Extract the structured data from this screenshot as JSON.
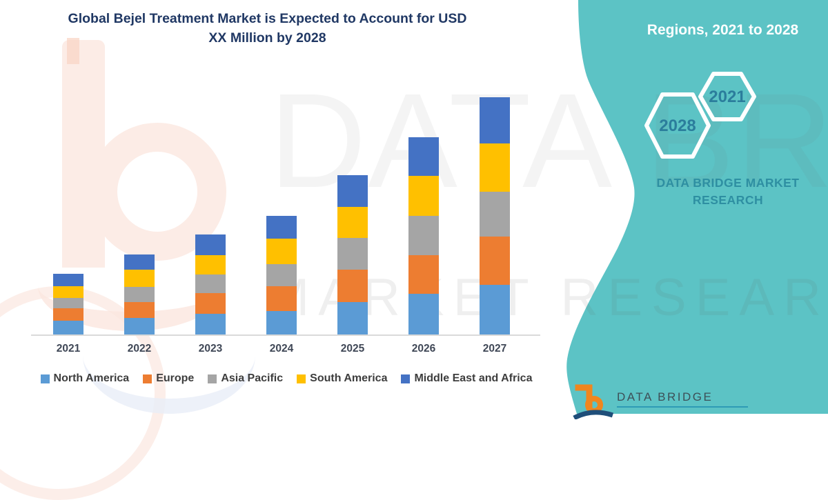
{
  "title": {
    "line1": "Global Bejel Treatment Market is Expected to Account for USD",
    "line2": "XX Million by 2028"
  },
  "side_panel": {
    "heading": "Regions, 2021 to 2028",
    "hexagons": [
      {
        "label": "2021"
      },
      {
        "label": "2028"
      }
    ],
    "brand_line1": "DATA BRIDGE MARKET",
    "brand_line2": "RESEARCH",
    "colors": {
      "background": "#5CC3C5",
      "heading_text": "#FFFFFF",
      "hexagon_year_text": "#2B7D9C",
      "brand_text": "#2E8FA2"
    }
  },
  "watermark": {
    "line1": "DATA BRIDGE",
    "line2": "MARKET RESEARCH"
  },
  "footer_logo": {
    "text": "DATA BRIDGE",
    "mark_color": "#F0861E",
    "text_color": "#3D4F57",
    "underline_color": "#2E9BB5"
  },
  "chart_data": {
    "type": "bar",
    "stacked": true,
    "grid": false,
    "legend_position": "bottom",
    "categories": [
      "2021",
      "2022",
      "2023",
      "2024",
      "2025",
      "2026",
      "2027"
    ],
    "series": [
      {
        "name": "North America",
        "color": "#5B9BD5",
        "values": [
          20,
          24,
          30,
          34,
          47,
          59,
          72
        ]
      },
      {
        "name": "Europe",
        "color": "#ED7D31",
        "values": [
          18,
          23,
          30,
          36,
          47,
          56,
          70
        ]
      },
      {
        "name": "Asia Pacific",
        "color": "#A5A5A5",
        "values": [
          15,
          22,
          27,
          32,
          46,
          57,
          65
        ]
      },
      {
        "name": "South America",
        "color": "#FFC000",
        "values": [
          17,
          25,
          28,
          37,
          45,
          58,
          70
        ]
      },
      {
        "name": "Middle East and Africa",
        "color": "#4472C4",
        "values": [
          18,
          22,
          30,
          33,
          46,
          56,
          67
        ]
      }
    ],
    "title": "Global Bejel Treatment Market is Expected to Account for USD XX Million by 2028",
    "xlabel": "",
    "ylabel": "",
    "value_axis_labels_shown": false,
    "units": "relative (USD XX Million placeholder, no numeric axis shown)"
  }
}
